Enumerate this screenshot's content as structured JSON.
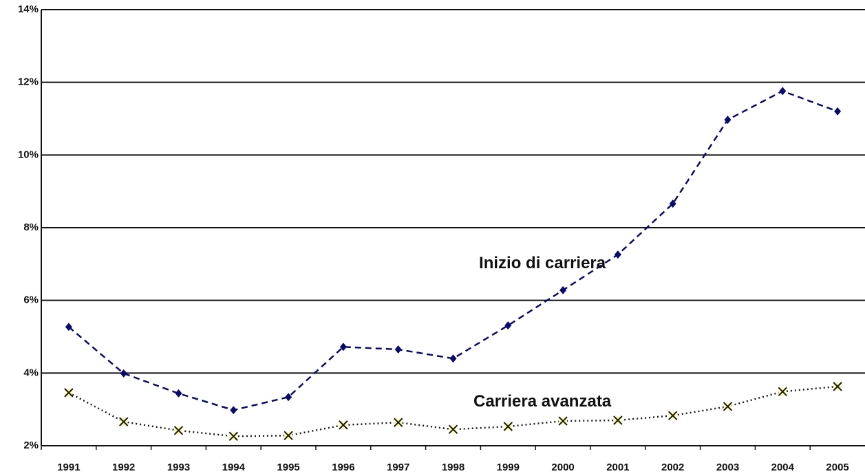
{
  "chart_data": {
    "type": "line",
    "categories": [
      "1991",
      "1992",
      "1993",
      "1994",
      "1995",
      "1996",
      "1997",
      "1998",
      "1999",
      "2000",
      "2001",
      "2002",
      "2003",
      "2004",
      "2005"
    ],
    "series": [
      {
        "name": "Inizio di carriera",
        "color": "#0a0a6e",
        "marker": "diamond",
        "line_style": "dashed",
        "values": [
          5.27,
          3.99,
          3.44,
          2.98,
          3.34,
          4.72,
          4.65,
          4.4,
          5.31,
          6.28,
          7.26,
          8.66,
          10.97,
          11.76,
          11.2
        ]
      },
      {
        "name": "Carriera avanzata",
        "color": "#1a1a1a",
        "marker": "x",
        "line_style": "dotted",
        "values": [
          3.46,
          2.66,
          2.42,
          2.26,
          2.28,
          2.57,
          2.64,
          2.45,
          2.53,
          2.68,
          2.7,
          2.83,
          3.08,
          3.49,
          3.63
        ]
      }
    ],
    "annotations": [
      {
        "text": "Inizio di carriera",
        "category": "2000",
        "value": 7.0
      },
      {
        "text": "Carriera avanzata",
        "category": "2000",
        "value": 3.2
      }
    ],
    "ylim": [
      2,
      14
    ],
    "yticks": [
      {
        "value": 2,
        "label": "2%"
      },
      {
        "value": 4,
        "label": "4%"
      },
      {
        "value": 6,
        "label": "6%"
      },
      {
        "value": 8,
        "label": "8%"
      },
      {
        "value": 10,
        "label": "10%"
      },
      {
        "value": 12,
        "label": "12%"
      },
      {
        "value": 14,
        "label": "14%"
      }
    ],
    "grid": true
  }
}
